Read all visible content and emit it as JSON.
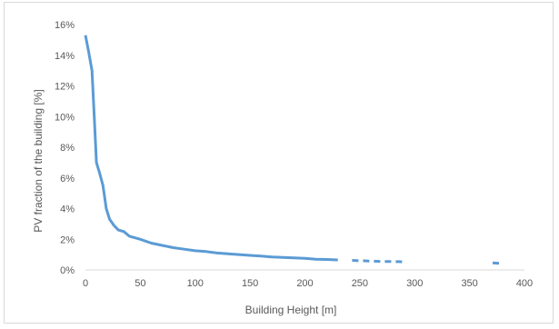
{
  "chart_data": {
    "type": "line",
    "title": "",
    "xlabel": "Building Height [m]",
    "ylabel": "PV fraction of the building [%]",
    "xlim": [
      0,
      400
    ],
    "ylim": [
      0,
      16
    ],
    "x_ticks": [
      0,
      50,
      100,
      150,
      200,
      250,
      300,
      350,
      400
    ],
    "y_ticks": [
      0,
      2,
      4,
      6,
      8,
      10,
      12,
      14,
      16
    ],
    "x_tick_labels": [
      "0",
      "50",
      "100",
      "150",
      "200",
      "250",
      "300",
      "350",
      "400"
    ],
    "y_tick_labels": [
      "0%",
      "2%",
      "4%",
      "6%",
      "8%",
      "10%",
      "12%",
      "14%",
      "16%"
    ],
    "grid": false,
    "legend": "none",
    "color": "#5b9bd5",
    "series": [
      {
        "x": [
          0,
          3,
          6,
          8,
          10,
          13,
          16,
          19,
          22,
          26,
          30,
          35,
          40,
          45,
          50,
          60,
          70,
          80,
          90,
          100,
          110,
          120,
          130,
          140,
          150,
          160,
          170,
          180,
          190,
          200,
          210,
          220,
          230
        ],
        "values": [
          15.3,
          14.2,
          13.0,
          10.0,
          7.0,
          6.3,
          5.5,
          4.0,
          3.3,
          2.9,
          2.6,
          2.5,
          2.2,
          2.1,
          2.0,
          1.75,
          1.6,
          1.45,
          1.35,
          1.25,
          1.2,
          1.1,
          1.05,
          1.0,
          0.95,
          0.9,
          0.85,
          0.82,
          0.78,
          0.75,
          0.7,
          0.68,
          0.65
        ]
      },
      {
        "x": [
          243,
          247,
          250,
          253,
          258,
          262,
          268,
          272,
          278,
          283,
          286,
          289
        ],
        "values": [
          0.62,
          0.61,
          0.61,
          0.6,
          0.58,
          0.57,
          0.56,
          0.55,
          0.55,
          0.54,
          0.54,
          0.53
        ]
      },
      {
        "x": [
          371,
          373,
          375,
          377
        ],
        "values": [
          0.45,
          0.45,
          0.44,
          0.44
        ]
      }
    ]
  }
}
